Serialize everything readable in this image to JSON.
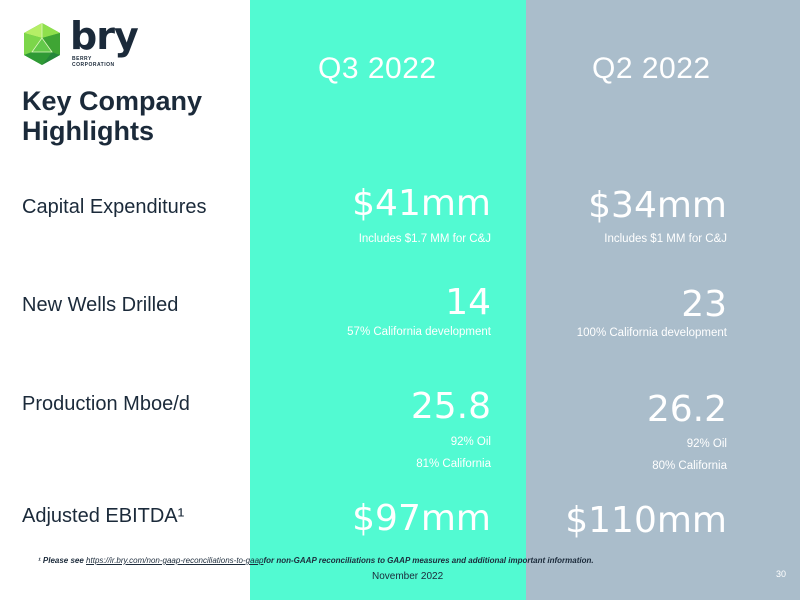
{
  "brand": {
    "name": "bry",
    "sub_line1": "BERRY",
    "sub_line2": "CORPORATION"
  },
  "title": "Key Company Highlights",
  "columns": {
    "q3": "Q3 2022",
    "q2": "Q2 2022"
  },
  "rows": [
    {
      "label": "Capital Expenditures",
      "q3_value": "$41mm",
      "q3_note": "Includes $1.7 MM for C&J",
      "q2_value": "$34mm",
      "q2_note": "Includes $1 MM for C&J"
    },
    {
      "label": "New Wells Drilled",
      "q3_value": "14",
      "q3_note": "57% California development",
      "q2_value": "23",
      "q2_note": "100% California development"
    },
    {
      "label": "Production Mboe/d",
      "q3_value": "25.8",
      "q3_note": "92% Oil",
      "q3_note2": "81% California",
      "q2_value": "26.2",
      "q2_note": "92% Oil",
      "q2_note2": "80% California"
    },
    {
      "label": "Adjusted EBITDA¹",
      "q3_value": "$97mm",
      "q2_value": "$110mm"
    }
  ],
  "footnote": {
    "prefix": "¹ Please see ",
    "link": "https://ir.bry.com/non-gaap-reconciliations-to-gaap",
    "suffix": "for non-GAAP reconciliations to GAAP measures and additional important information."
  },
  "date": "November 2022",
  "page_number": "30",
  "colors": {
    "q3_column": "#52fad2",
    "q2_column": "#aabdcb",
    "text_dark": "#1b2a3a",
    "logo_green": "#6fd13a"
  }
}
